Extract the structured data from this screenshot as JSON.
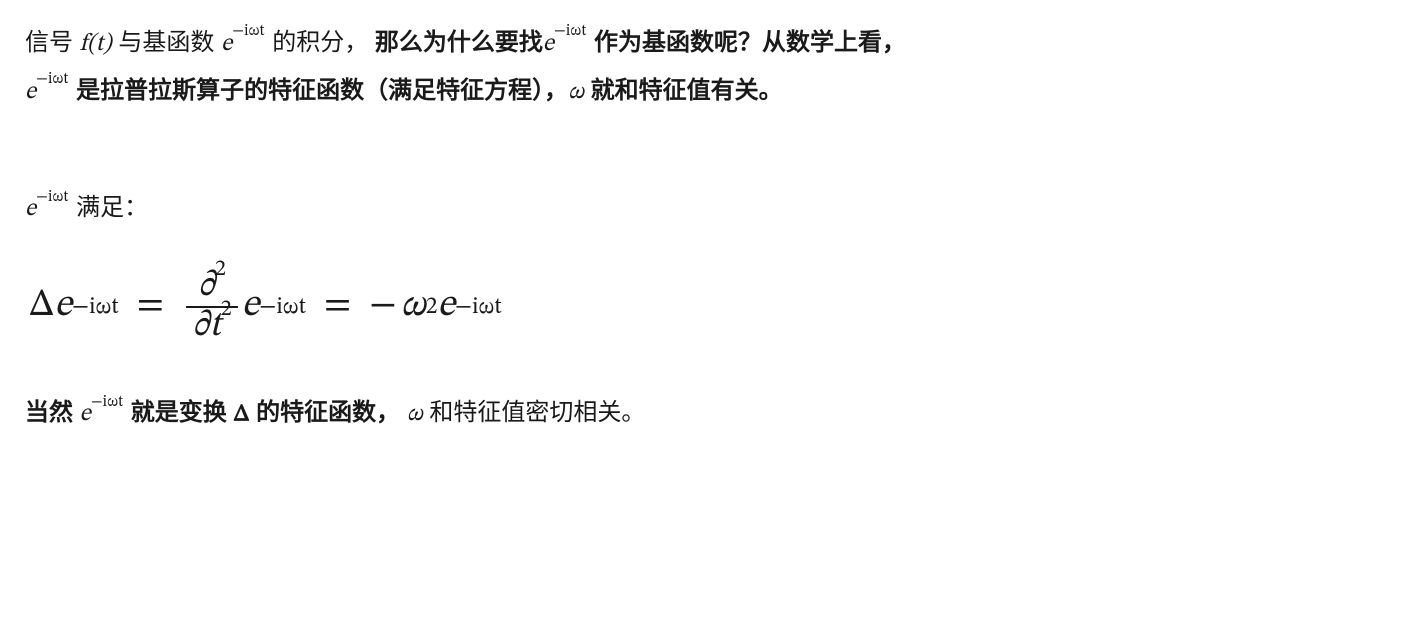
{
  "line1": {
    "t1": "信号 ",
    "m_ft": "f(t)",
    "t2": " 与基函数 ",
    "eiwt_sup": "−iωt",
    "t3": " 的积分，",
    "b1": "那么为什么要找",
    "b2": " 作为基函数呢？从数学上看，"
  },
  "line2": {
    "b1": " 是拉普拉斯算子的特征函数（满足特征方程），",
    "m_omega": "ω",
    "b2": " 就和特征值有关。"
  },
  "satisfies": {
    "t1": " 满足："
  },
  "eq": {
    "Delta": "Δ",
    "e": "e",
    "sup": "−iωt",
    "equals": "=",
    "partial": "∂",
    "two": "2",
    "t": "t",
    "minus": "−",
    "omega": "ω"
  },
  "last": {
    "b1": "当然 ",
    "b2": " 就是变换 ",
    "Delta": "Δ",
    "b3": " 的特征函数，",
    "m_omega": "ω",
    "t1": " 和特征值密切相关。"
  }
}
